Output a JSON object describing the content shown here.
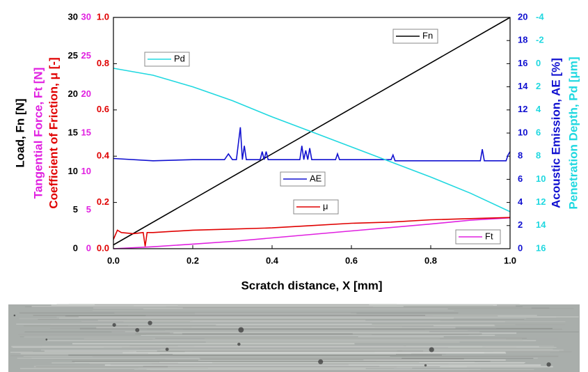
{
  "chart_data": {
    "type": "line",
    "x_label": "Scratch distance, X [mm]",
    "xlim": [
      0,
      1
    ],
    "xticks": [
      {
        "value": 0,
        "label": "0.0"
      },
      0.2,
      0.4,
      0.6,
      0.8,
      {
        "value": 1,
        "label": "1.0"
      }
    ],
    "axes": {
      "fn": {
        "label": "Load, Fn [N]",
        "color": "#000000",
        "lim": [
          0,
          30
        ],
        "ticks": [
          0,
          5,
          10,
          15,
          20,
          25,
          30
        ]
      },
      "ft": {
        "label": "Tangential Force, Ft [N]",
        "color": "#e020e0",
        "lim": [
          0,
          30
        ],
        "ticks": [
          0,
          5,
          10,
          15,
          20,
          25,
          30
        ]
      },
      "mu": {
        "label": "Coefficient of Friction, μ [-]",
        "color": "#e00000",
        "lim": [
          0,
          1
        ],
        "ticks": [
          {
            "value": 0,
            "label": "0.0"
          },
          0.2,
          0.4,
          0.6,
          0.8,
          {
            "value": 1,
            "label": "1.0"
          }
        ]
      },
      "ae": {
        "label": "Acoustic Emission, AE [%]",
        "color": "#1010d0",
        "lim": [
          0,
          20
        ],
        "ticks": [
          0,
          2,
          4,
          6,
          8,
          10,
          12,
          14,
          16,
          18,
          20
        ]
      },
      "pd": {
        "label": "Penetration Depth, Pd [μm]",
        "color": "#20d8e0",
        "lim": [
          16,
          -4
        ],
        "inverted": true,
        "ticks": [
          16,
          14,
          12,
          10,
          8,
          6,
          4,
          2,
          0,
          -2,
          -4
        ]
      }
    },
    "series": [
      {
        "name": "Fn",
        "axis": "fn",
        "color": "#000000",
        "x": [
          0,
          1
        ],
        "values": [
          0.5,
          30
        ]
      },
      {
        "name": "Ft",
        "axis": "ft",
        "color": "#e020e0",
        "x": [
          0,
          0.1,
          0.2,
          0.3,
          0.4,
          0.5,
          0.6,
          0.7,
          0.8,
          0.9,
          1
        ],
        "values": [
          0,
          0.25,
          0.6,
          0.95,
          1.4,
          1.85,
          2.3,
          2.75,
          3.2,
          3.7,
          4.0
        ]
      },
      {
        "name": "μ",
        "axis": "mu",
        "color": "#e00000",
        "x": [
          0,
          0.01,
          0.02,
          0.05,
          0.075,
          0.08,
          0.085,
          0.1,
          0.15,
          0.2,
          0.3,
          0.4,
          0.5,
          0.6,
          0.7,
          0.8,
          0.9,
          1
        ],
        "values": [
          0.04,
          0.08,
          0.07,
          0.065,
          0.07,
          0.01,
          0.07,
          0.07,
          0.075,
          0.08,
          0.085,
          0.09,
          0.1,
          0.11,
          0.115,
          0.125,
          0.13,
          0.135
        ]
      },
      {
        "name": "AE",
        "axis": "ae",
        "color": "#1010d0",
        "x": [
          0,
          0.1,
          0.2,
          0.28,
          0.29,
          0.3,
          0.31,
          0.32,
          0.325,
          0.33,
          0.335,
          0.37,
          0.375,
          0.38,
          0.385,
          0.39,
          0.47,
          0.475,
          0.48,
          0.485,
          0.49,
          0.495,
          0.5,
          0.56,
          0.565,
          0.57,
          0.7,
          0.705,
          0.71,
          0.925,
          0.93,
          0.935,
          0.99,
          0.995,
          1
        ],
        "values": [
          7.8,
          7.6,
          7.7,
          7.7,
          8.2,
          7.7,
          7.7,
          10.5,
          7.7,
          8.9,
          7.7,
          7.7,
          8.4,
          7.7,
          8.4,
          7.7,
          7.7,
          8.9,
          7.7,
          8.5,
          7.7,
          8.7,
          7.7,
          7.7,
          8.2,
          7.7,
          7.7,
          8.1,
          7.6,
          7.6,
          8.6,
          7.6,
          7.6,
          8.1,
          8.4
        ]
      },
      {
        "name": "Pd",
        "axis": "pd",
        "color": "#20d8e0",
        "x": [
          0,
          0.1,
          0.2,
          0.3,
          0.4,
          0.5,
          0.6,
          0.7,
          0.8,
          0.9,
          1
        ],
        "values": [
          0.4,
          1.0,
          2.0,
          3.2,
          4.6,
          5.9,
          7.2,
          8.5,
          9.8,
          11.2,
          12.8
        ]
      }
    ]
  }
}
